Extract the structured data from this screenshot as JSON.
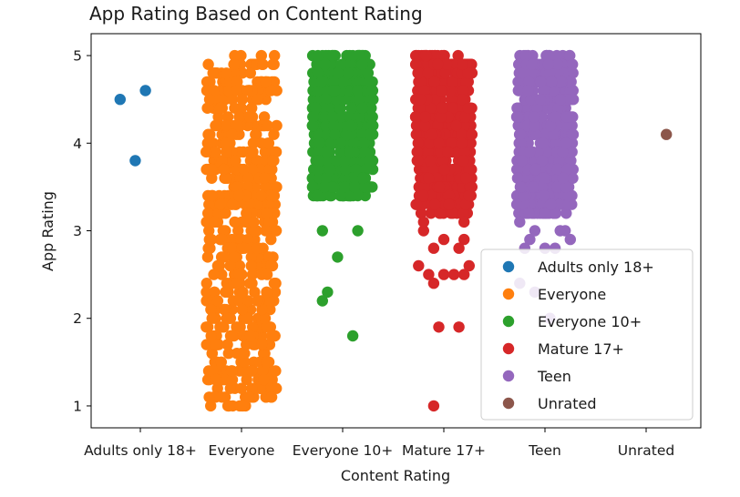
{
  "chart_data": {
    "type": "scatter",
    "title": "App Rating Based on Content Rating",
    "xlabel": "Content Rating",
    "ylabel": "App Rating",
    "categories": [
      "Adults only 18+",
      "Everyone",
      "Everyone 10+",
      "Mature 17+",
      "Teen",
      "Unrated"
    ],
    "ylim": [
      0.75,
      5.25
    ],
    "yticks": [
      1,
      2,
      3,
      4,
      5
    ],
    "grid": false,
    "legend": {
      "position": "lower-right"
    },
    "series": [
      {
        "name": "Adults only 18+",
        "color": "#1f77b4",
        "points": [
          [
            -0.2,
            4.5
          ],
          [
            0.05,
            4.6
          ],
          [
            -0.05,
            3.8
          ]
        ]
      },
      {
        "name": "Everyone",
        "color": "#ff7f0e",
        "jitter": 0.35,
        "range": [
          1.0,
          5.0
        ],
        "points": [
          [
            0.0,
            1.0
          ],
          [
            0.0,
            1.2
          ],
          [
            -0.1,
            1.4
          ],
          [
            0.1,
            1.4
          ],
          [
            -0.2,
            1.5
          ],
          [
            0.25,
            1.5
          ],
          [
            0.0,
            1.6
          ],
          [
            -0.25,
            1.7
          ],
          [
            0.2,
            1.7
          ],
          [
            0.3,
            1.8
          ],
          [
            -0.3,
            1.8
          ]
        ]
      },
      {
        "name": "Everyone 10+",
        "color": "#2ca02c",
        "jitter": 0.3,
        "range": [
          3.4,
          5.0
        ],
        "points": [
          [
            -0.1,
            5.0
          ],
          [
            0.1,
            5.0
          ],
          [
            -0.2,
            3.0
          ],
          [
            0.15,
            3.0
          ],
          [
            -0.05,
            2.7
          ],
          [
            -0.15,
            2.3
          ],
          [
            -0.2,
            2.2
          ],
          [
            0.1,
            1.8
          ],
          [
            0.2,
            3.6
          ],
          [
            -0.25,
            3.4
          ],
          [
            0.15,
            3.4
          ],
          [
            -0.1,
            3.5
          ]
        ]
      },
      {
        "name": "Mature 17+",
        "color": "#d62728",
        "jitter": 0.28,
        "range": [
          3.2,
          5.0
        ],
        "points": [
          [
            -0.2,
            3.0
          ],
          [
            0.0,
            2.9
          ],
          [
            0.2,
            2.9
          ],
          [
            -0.1,
            2.8
          ],
          [
            0.15,
            2.8
          ],
          [
            -0.25,
            2.6
          ],
          [
            0.25,
            2.6
          ],
          [
            -0.15,
            2.5
          ],
          [
            0.0,
            2.5
          ],
          [
            0.1,
            2.5
          ],
          [
            0.2,
            2.5
          ],
          [
            -0.1,
            2.4
          ],
          [
            -0.05,
            1.9
          ],
          [
            0.15,
            1.9
          ],
          [
            -0.1,
            1.0
          ],
          [
            -0.2,
            3.1
          ],
          [
            0.2,
            3.1
          ]
        ]
      },
      {
        "name": "Teen",
        "color": "#9467bd",
        "jitter": 0.28,
        "range": [
          3.2,
          5.0
        ],
        "points": [
          [
            -0.25,
            3.1
          ],
          [
            0.2,
            3.0
          ],
          [
            -0.15,
            2.9
          ],
          [
            0.25,
            2.9
          ],
          [
            -0.2,
            2.8
          ],
          [
            0.0,
            2.8
          ],
          [
            0.1,
            2.8
          ],
          [
            -0.25,
            2.4
          ],
          [
            -0.1,
            2.3
          ],
          [
            0.05,
            2.0
          ],
          [
            0.15,
            3.0
          ],
          [
            -0.1,
            3.0
          ]
        ]
      },
      {
        "name": "Unrated",
        "color": "#8c564b",
        "points": [
          [
            0.2,
            4.1
          ]
        ]
      }
    ]
  }
}
